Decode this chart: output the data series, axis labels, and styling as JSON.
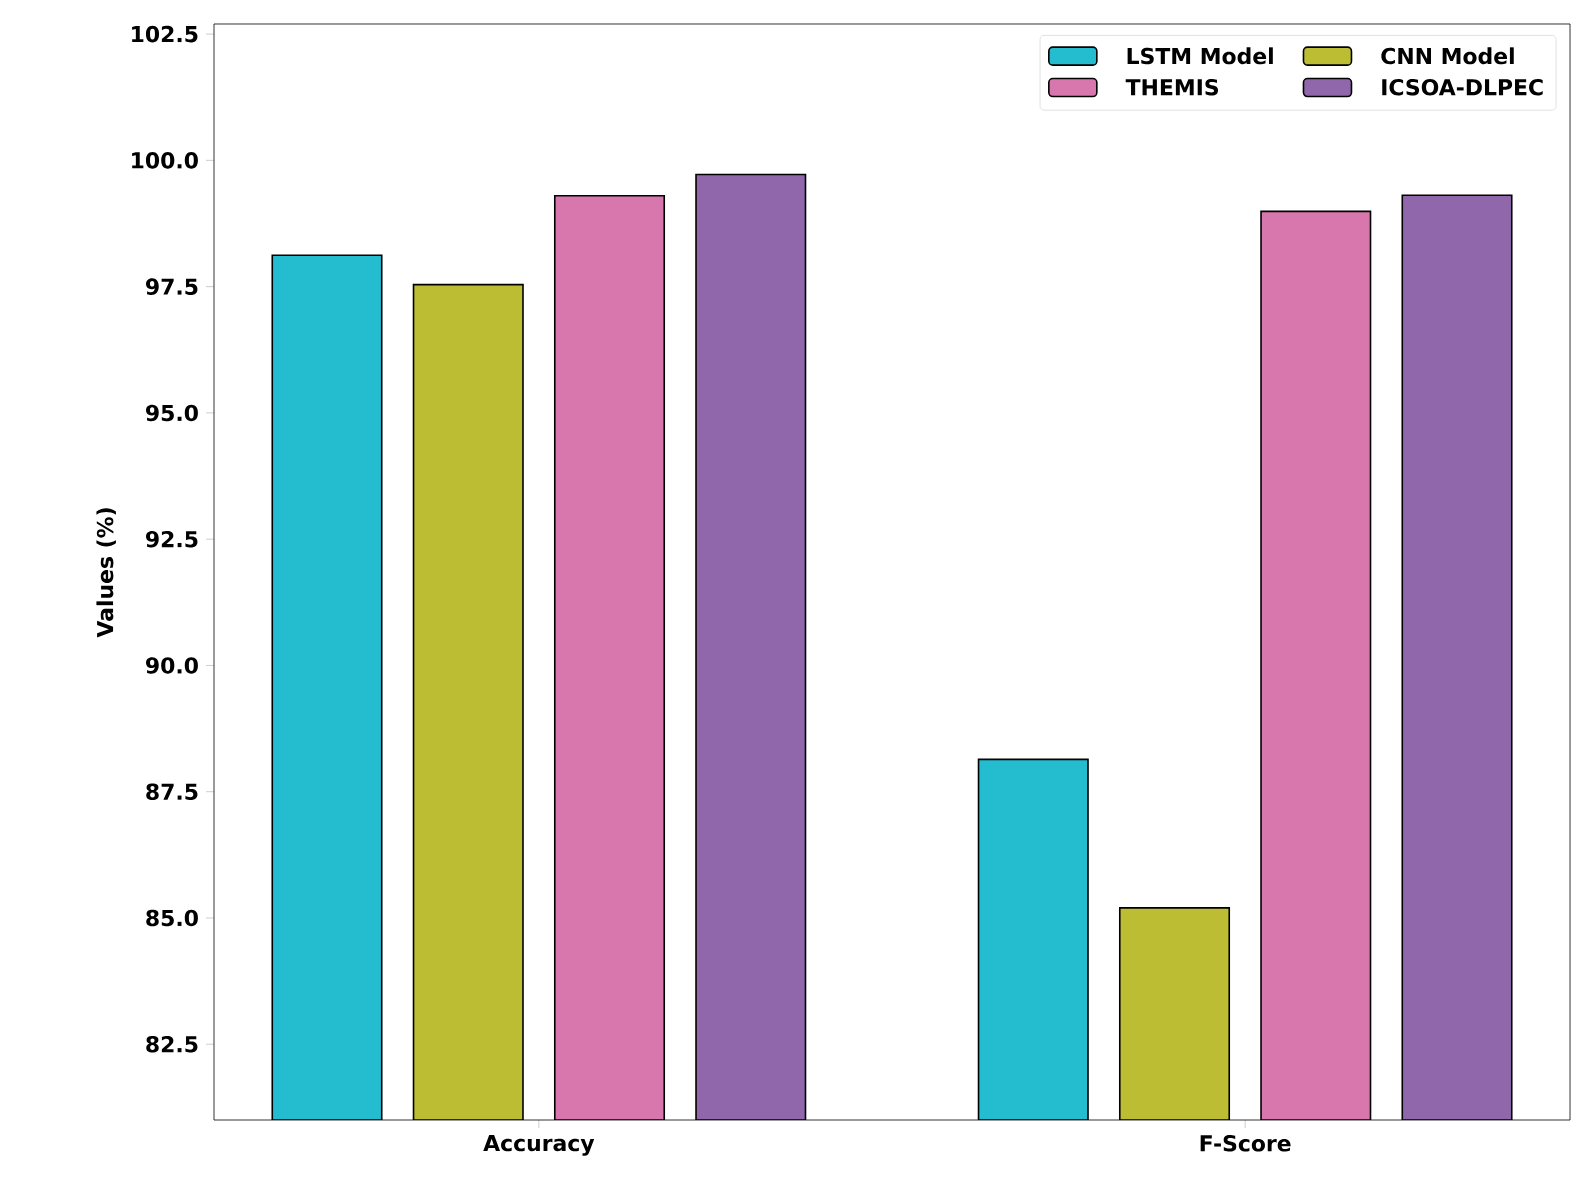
{
  "chart_data": {
    "type": "bar",
    "ylabel": "Values (%)",
    "categories": [
      "Accuracy",
      "F-Score"
    ],
    "series": [
      {
        "name": "LSTM Model",
        "color": "#24bccf",
        "values": [
          98.12,
          88.14
        ]
      },
      {
        "name": "CNN Model",
        "color": "#bcbd33",
        "values": [
          97.54,
          85.2
        ]
      },
      {
        "name": "THEMIS",
        "color": "#d877ae",
        "values": [
          99.3,
          98.99
        ]
      },
      {
        "name": "ICSOA-DLPEC",
        "color": "#9067ab",
        "values": [
          99.72,
          99.31
        ]
      }
    ],
    "ylim": [
      81.0,
      102.7
    ],
    "yticks": [
      {
        "value": 82.5,
        "label": "82.5"
      },
      {
        "value": 85,
        "label": "85.0"
      },
      {
        "value": 87.5,
        "label": "87.5"
      },
      {
        "value": 90,
        "label": "90.0"
      },
      {
        "value": 92.5,
        "label": "92.5"
      },
      {
        "value": 95,
        "label": "95.0"
      },
      {
        "value": 97.5,
        "label": "97.5"
      },
      {
        "value": 100,
        "label": "100.0"
      },
      {
        "value": 102.5,
        "label": "102.5"
      }
    ],
    "legend": "top right"
  }
}
